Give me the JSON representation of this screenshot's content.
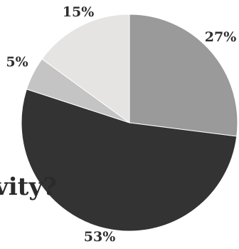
{
  "chart_data": {
    "type": "pie",
    "slices": [
      {
        "label": "27%",
        "value": 27,
        "color": "#9a9a9a"
      },
      {
        "label": "53%",
        "value": 53,
        "color": "#333333"
      },
      {
        "label": "5%",
        "value": 5,
        "color": "#c4c4c4"
      },
      {
        "label": "15%",
        "value": 15,
        "color": "#e6e4e2"
      }
    ],
    "start": "12 o'clock",
    "direction": "clockwise",
    "legend": "none"
  },
  "question_text_fragment": "vity?"
}
